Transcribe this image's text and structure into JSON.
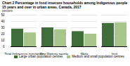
{
  "chart_data": {
    "type": "bar",
    "title": "Chart 2",
    "subtitle": "Percentage in food insecure households among Indigenous people 15 years and over in urban areas, Canada, 2017",
    "y_label": "percent",
    "categories": [
      "Total Indigenous population",
      "First Nations people",
      "Métis",
      "Inuit"
    ],
    "series": [
      {
        "name": "Large urban population centres",
        "color": "#3f6e3a",
        "values": [
          28,
          30,
          24,
          37
        ]
      },
      {
        "name": "Medium and small population centres",
        "color": "#a7c48b",
        "values": [
          22,
          27,
          20,
          38
        ]
      }
    ],
    "ylim": [
      0,
      50
    ],
    "yticks": [
      0,
      10,
      20,
      30,
      40,
      50
    ],
    "grid": true,
    "legend": "bottom"
  }
}
